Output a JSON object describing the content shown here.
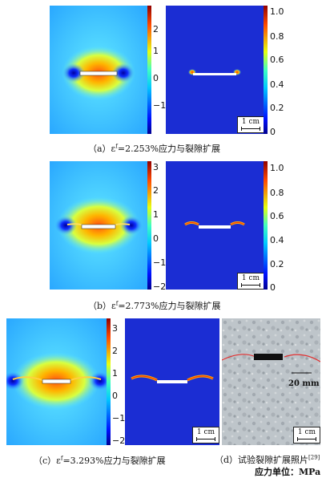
{
  "panels": [
    {
      "id": "a",
      "caption_prefix": "（a）ε",
      "caption_sup": "f",
      "caption_value": "=2.253%应力与裂隙扩展",
      "stress_ticks": [
        "2",
        "1",
        "0",
        "−1"
      ],
      "damage_ticks": [
        "1.0",
        "0.8",
        "0.6",
        "0.4",
        "0.2",
        "0"
      ],
      "scale_label": "1 cm"
    },
    {
      "id": "b",
      "caption_prefix": "（b）ε",
      "caption_sup": "f",
      "caption_value": "=2.773%应力与裂隙扩展",
      "stress_ticks": [
        "3",
        "2",
        "1",
        "0",
        "−1",
        "−2"
      ],
      "damage_ticks": [
        "1.0",
        "0.8",
        "0.6",
        "0.4",
        "0.2",
        "0"
      ],
      "scale_label": "1 cm"
    },
    {
      "id": "c",
      "caption_prefix": "（c）ε",
      "caption_sup": "f",
      "caption_value": "=3.293%应力与裂隙扩展",
      "stress_ticks": [
        "3",
        "2",
        "1",
        "0",
        "−1",
        "−2"
      ],
      "scale_label": "1 cm"
    }
  ],
  "photo": {
    "caption": "（d）试验裂隙扩展照片",
    "caption_ref": "[29]",
    "length_label": "20 mm",
    "scale_label": "1 cm"
  },
  "unit_note": "应力单位：MPa",
  "colors": {
    "stress_low": "#1d2fd6",
    "stress_mid": "#4fd1ff",
    "stress_high": "#ff3a10",
    "damage_bg": "#1a2ad0",
    "crack": "#ffffff"
  }
}
